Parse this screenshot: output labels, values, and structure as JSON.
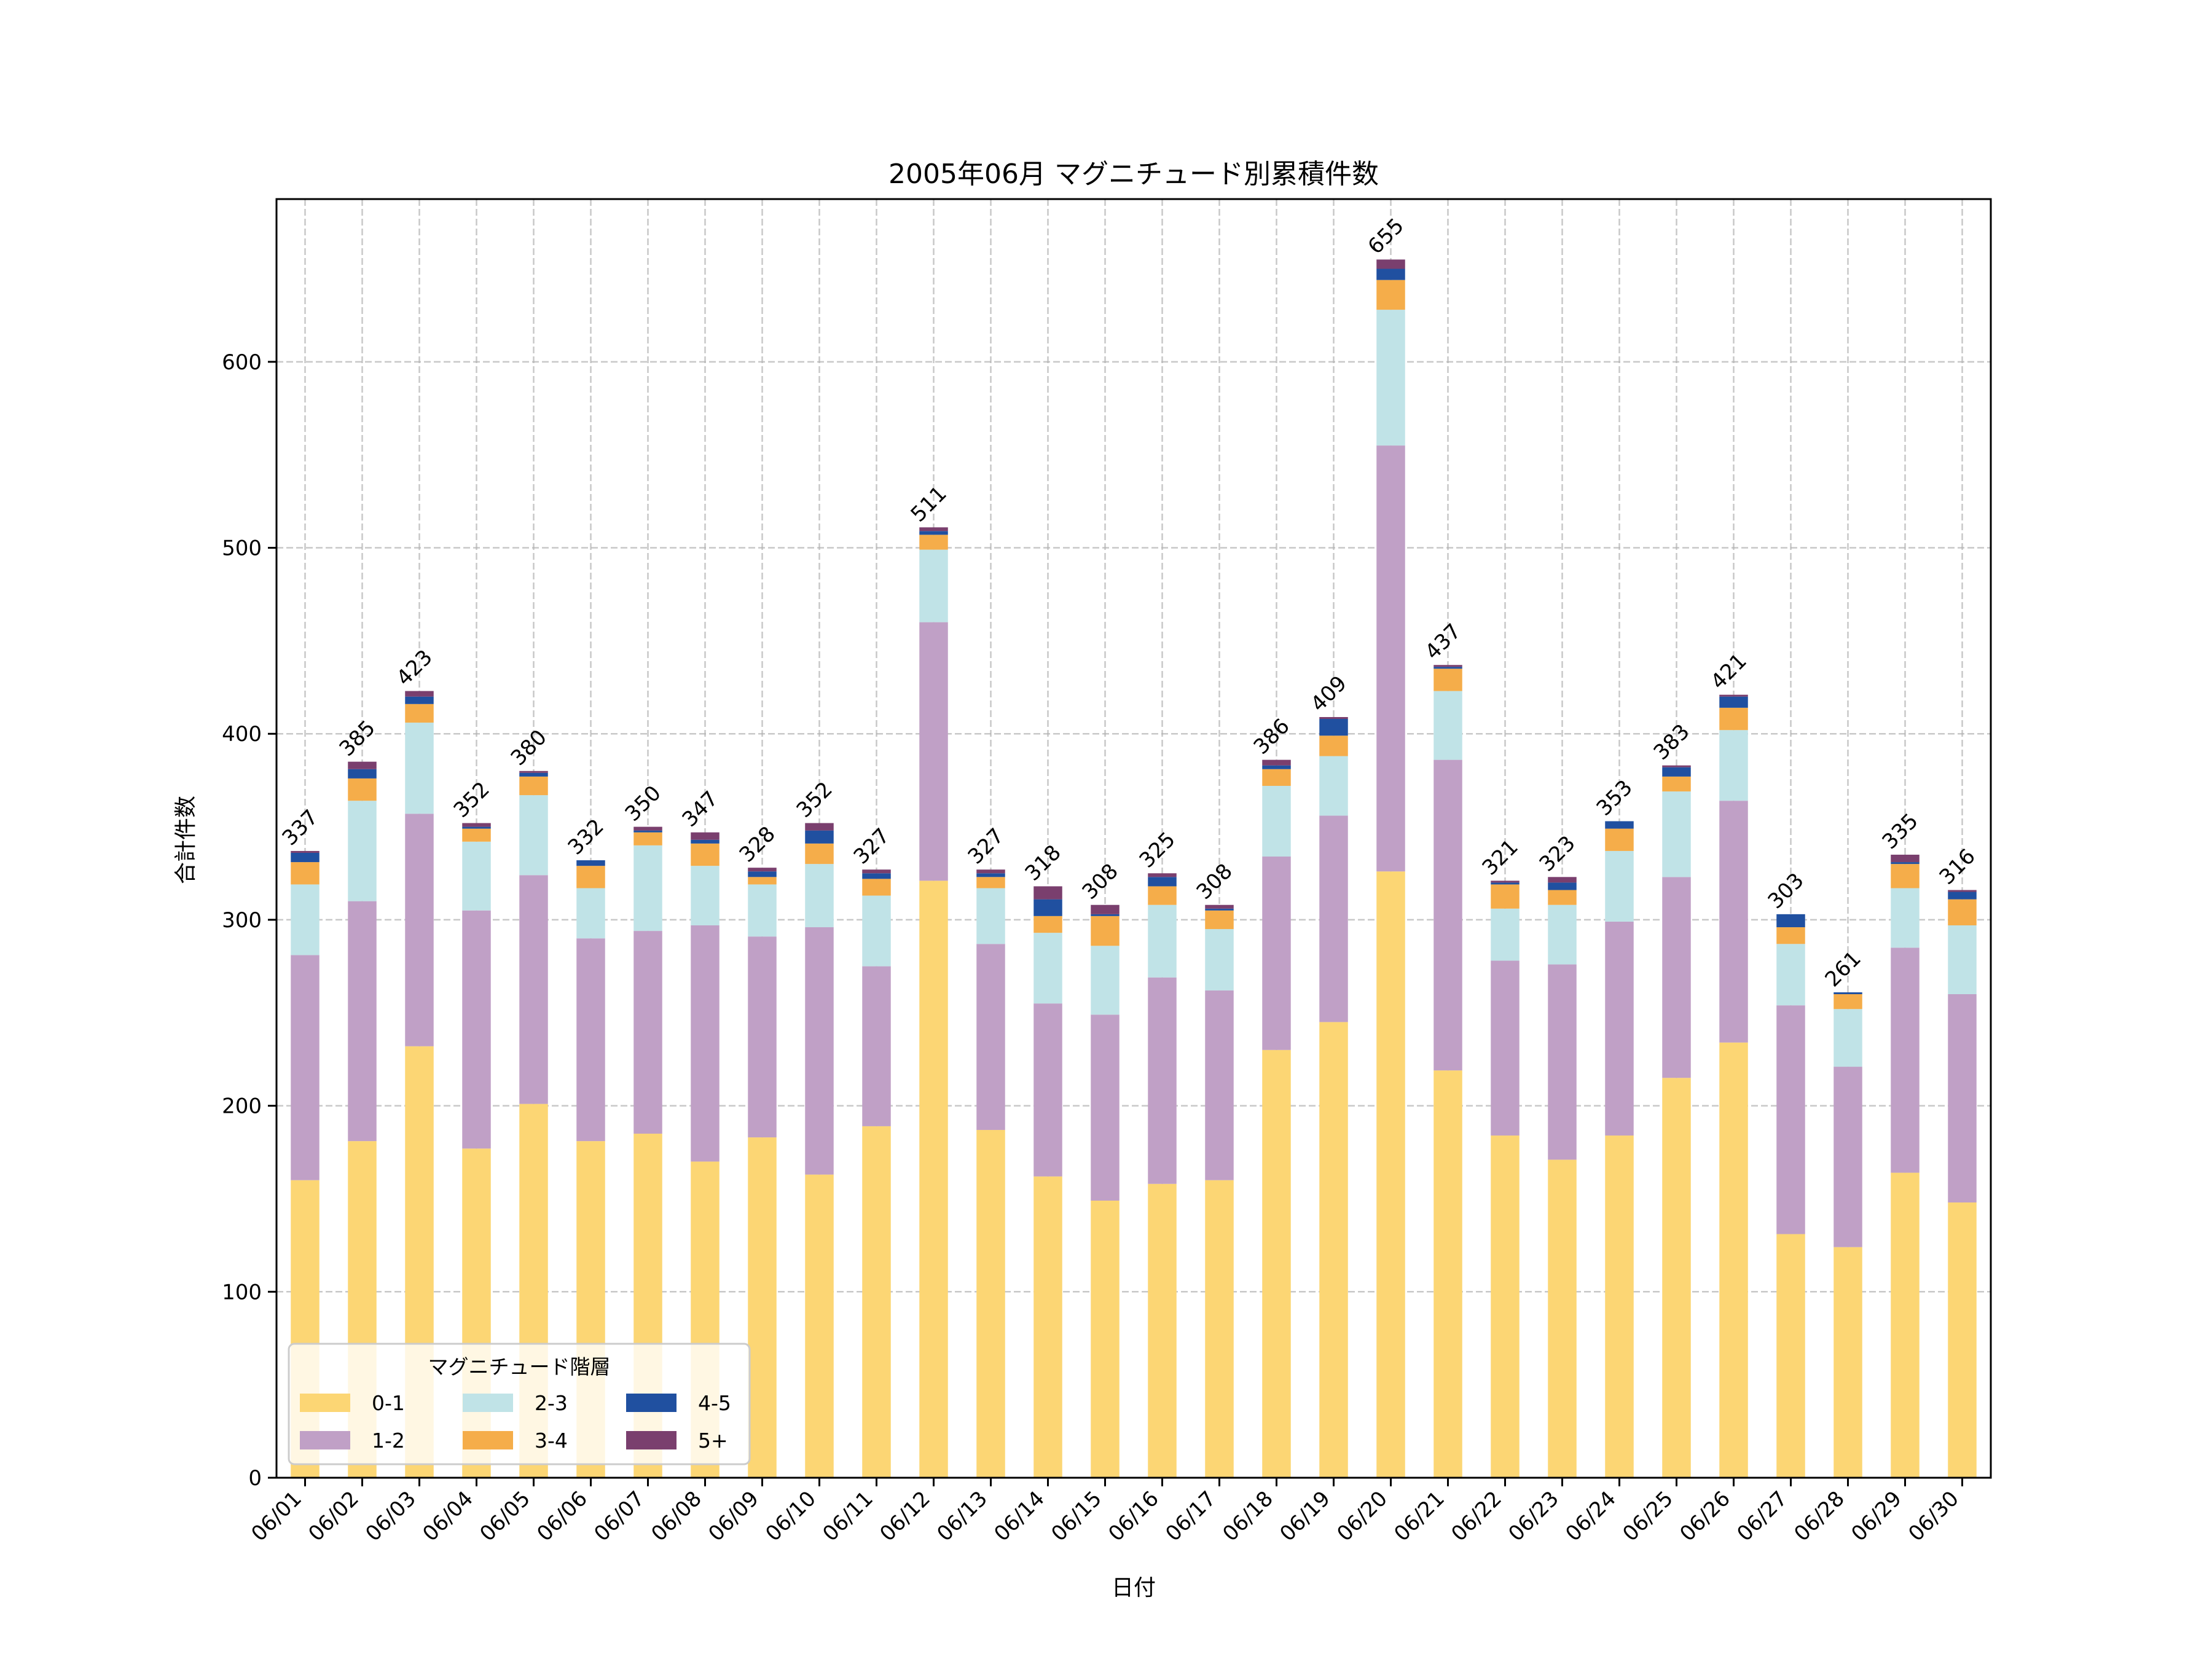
{
  "chart_data": {
    "type": "bar",
    "stacked": true,
    "title": "2005年06月 マグニチュード別累積件数",
    "xlabel": "日付",
    "ylabel": "合計件数",
    "ylim": [
      0,
      687.5
    ],
    "yticks": [
      0,
      100,
      200,
      300,
      400,
      500,
      600
    ],
    "grid": true,
    "legend": {
      "title": "マグニチュード階層",
      "placement": "lower-left",
      "columns": 3
    },
    "categories": [
      "06/01",
      "06/02",
      "06/03",
      "06/04",
      "06/05",
      "06/06",
      "06/07",
      "06/08",
      "06/09",
      "06/10",
      "06/11",
      "06/12",
      "06/13",
      "06/14",
      "06/15",
      "06/16",
      "06/17",
      "06/18",
      "06/19",
      "06/20",
      "06/21",
      "06/22",
      "06/23",
      "06/24",
      "06/25",
      "06/26",
      "06/27",
      "06/28",
      "06/29",
      "06/30"
    ],
    "series": [
      {
        "name": "0-1",
        "color": "#fcd674",
        "values": [
          160,
          181,
          232,
          177,
          201,
          181,
          185,
          170,
          183,
          163,
          189,
          321,
          187,
          162,
          149,
          158,
          160,
          230,
          245,
          326,
          219,
          184,
          171,
          184,
          215,
          234,
          131,
          124,
          164,
          148
        ]
      },
      {
        "name": "1-2",
        "color": "#c0a0c6",
        "values": [
          121,
          129,
          125,
          128,
          123,
          109,
          109,
          127,
          108,
          133,
          86,
          139,
          100,
          93,
          100,
          111,
          102,
          104,
          111,
          229,
          167,
          94,
          105,
          115,
          108,
          130,
          123,
          97,
          121,
          112
        ]
      },
      {
        "name": "2-3",
        "color": "#c0e3e7",
        "values": [
          38,
          54,
          49,
          37,
          43,
          27,
          46,
          32,
          28,
          34,
          38,
          39,
          30,
          38,
          37,
          39,
          33,
          38,
          32,
          73,
          37,
          28,
          32,
          38,
          46,
          38,
          33,
          31,
          32,
          37
        ]
      },
      {
        "name": "3-4",
        "color": "#f5ad4a",
        "values": [
          12,
          12,
          10,
          7,
          10,
          12,
          7,
          12,
          4,
          11,
          9,
          8,
          6,
          9,
          16,
          10,
          10,
          9,
          11,
          16,
          12,
          13,
          8,
          12,
          8,
          12,
          9,
          8,
          13,
          14
        ]
      },
      {
        "name": "4-5",
        "color": "#2050a0",
        "values": [
          5,
          5,
          4,
          1,
          2,
          3,
          1,
          2,
          3,
          7,
          3,
          2,
          2,
          9,
          1,
          5,
          1,
          2,
          9,
          6,
          1,
          1,
          4,
          4,
          5,
          6,
          7,
          1,
          1,
          4
        ]
      },
      {
        "name": "5+",
        "color": "#7a3f6e",
        "values": [
          1,
          4,
          3,
          2,
          1,
          0,
          2,
          4,
          2,
          4,
          2,
          2,
          2,
          7,
          5,
          2,
          2,
          3,
          1,
          5,
          1,
          1,
          3,
          0,
          1,
          1,
          0,
          0,
          4,
          1
        ]
      }
    ],
    "totals": [
      "337",
      "385",
      "423",
      "352",
      "380",
      "332",
      "350",
      "347",
      "328",
      "352",
      "327",
      "511",
      "327",
      "318",
      "308",
      "325",
      "308",
      "386",
      "409",
      "655",
      "437",
      "321",
      "323",
      "353",
      "383",
      "421",
      "303",
      "261",
      "335",
      "316"
    ]
  }
}
